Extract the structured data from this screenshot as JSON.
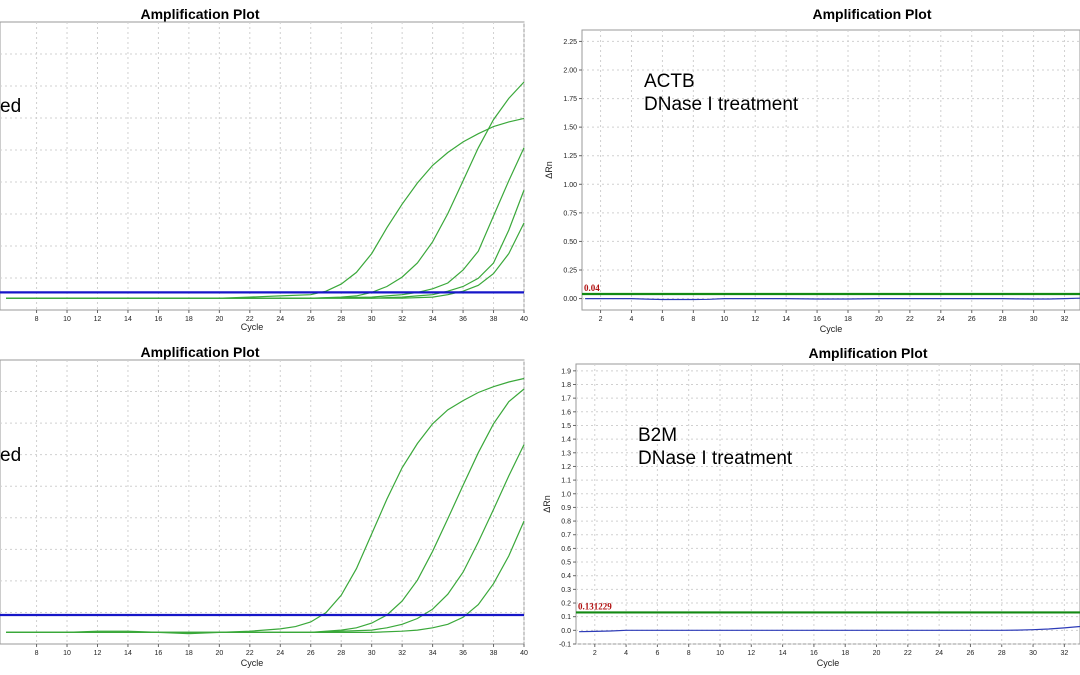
{
  "colors": {
    "amplification": "#3aa83a",
    "baseline": "#2d3bb8",
    "threshold_blue": "#1616c8",
    "threshold_green": "#138a13",
    "threshold_label": "#b01010",
    "grid": "#d0d0d0"
  },
  "chart_data": [
    {
      "id": "top-left",
      "type": "line",
      "title": "Amplification Plot",
      "xlabel": "Cycle",
      "ylabel": "",
      "xlim": [
        5.6,
        40
      ],
      "ylim": [
        -0.1,
        2.35
      ],
      "xticks": [
        8,
        10,
        12,
        14,
        16,
        18,
        20,
        22,
        24,
        26,
        28,
        30,
        32,
        34,
        36,
        38,
        40
      ],
      "yticks": [],
      "annotation": [
        "ed"
      ],
      "threshold": {
        "value": 0.05,
        "label": ""
      },
      "grid": true,
      "series": [
        {
          "x": [
            6,
            10,
            14,
            18,
            20,
            22,
            24,
            26,
            27,
            28,
            29,
            30,
            31,
            32,
            33,
            34,
            35,
            36,
            37,
            38,
            39,
            40
          ],
          "y": [
            0,
            0,
            0,
            0,
            0,
            0.01,
            0.02,
            0.03,
            0.06,
            0.12,
            0.22,
            0.38,
            0.6,
            0.8,
            0.98,
            1.13,
            1.24,
            1.33,
            1.4,
            1.46,
            1.5,
            1.53
          ]
        },
        {
          "x": [
            6,
            10,
            14,
            18,
            22,
            26,
            28,
            29,
            30,
            31,
            32,
            33,
            34,
            35,
            36,
            37,
            38,
            39,
            40
          ],
          "y": [
            0,
            0,
            0,
            0,
            0,
            0,
            0.01,
            0.02,
            0.05,
            0.1,
            0.18,
            0.3,
            0.48,
            0.72,
            1.0,
            1.28,
            1.52,
            1.7,
            1.84
          ]
        },
        {
          "x": [
            6,
            10,
            14,
            18,
            22,
            26,
            30,
            31,
            32,
            33,
            34,
            35,
            36,
            37,
            38,
            39,
            40
          ],
          "y": [
            0,
            0,
            0,
            0,
            0,
            0,
            0.01,
            0.02,
            0.03,
            0.05,
            0.08,
            0.13,
            0.24,
            0.4,
            0.7,
            1.0,
            1.28
          ]
        },
        {
          "x": [
            6,
            10,
            14,
            18,
            22,
            26,
            30,
            32,
            33,
            34,
            35,
            36,
            37,
            38,
            39,
            40
          ],
          "y": [
            0,
            0,
            0,
            0,
            0,
            0,
            0,
            0.01,
            0.02,
            0.03,
            0.06,
            0.1,
            0.17,
            0.3,
            0.58,
            0.92
          ]
        },
        {
          "x": [
            6,
            10,
            14,
            18,
            22,
            26,
            30,
            32,
            34,
            35,
            36,
            37,
            38,
            39,
            40
          ],
          "y": [
            0,
            0,
            0,
            0,
            0,
            0,
            0,
            0,
            0.01,
            0.03,
            0.06,
            0.11,
            0.21,
            0.38,
            0.64
          ]
        }
      ]
    },
    {
      "id": "top-right",
      "type": "line",
      "title": "Amplification Plot",
      "xlabel": "Cycle",
      "ylabel": "ΔRn",
      "xlim": [
        0.8,
        33
      ],
      "ylim": [
        -0.1,
        2.35
      ],
      "xticks": [
        2,
        4,
        6,
        8,
        10,
        12,
        14,
        16,
        18,
        20,
        22,
        24,
        26,
        28,
        30,
        32
      ],
      "yticks": [
        "0.00",
        "0.25",
        "0.50",
        "0.75",
        "1.00",
        "1.25",
        "1.50",
        "1.75",
        "2.00",
        "2.25"
      ],
      "annotation": [
        "ACTB",
        "DNase I treatment"
      ],
      "threshold": {
        "value": 0.04,
        "label": "0.04"
      },
      "grid": true,
      "series": [
        {
          "x": [
            1,
            4,
            5,
            6,
            7,
            8,
            9,
            10,
            12,
            14,
            16,
            18,
            20,
            24,
            28,
            29,
            30,
            31,
            32,
            33
          ],
          "y": [
            0,
            0,
            -0.005,
            -0.008,
            -0.008,
            -0.008,
            -0.006,
            0,
            0,
            0,
            -0.004,
            -0.004,
            0,
            0,
            0,
            -0.003,
            -0.004,
            -0.004,
            0,
            0.003
          ]
        }
      ]
    },
    {
      "id": "bottom-left",
      "type": "line",
      "title": "Amplification Plot",
      "xlabel": "Cycle",
      "ylabel": "",
      "xlim": [
        5.6,
        40
      ],
      "ylim": [
        -0.1,
        2.35
      ],
      "xticks": [
        8,
        10,
        12,
        14,
        16,
        18,
        20,
        22,
        24,
        26,
        28,
        30,
        32,
        34,
        36,
        38,
        40
      ],
      "yticks": [],
      "annotation": [
        "ed"
      ],
      "threshold": {
        "value": 0.15,
        "label": ""
      },
      "grid": true,
      "series": [
        {
          "x": [
            6,
            10,
            12,
            14,
            16,
            18,
            20,
            22,
            24,
            25,
            26,
            27,
            28,
            29,
            30,
            31,
            32,
            33,
            34,
            35,
            36,
            37,
            38,
            39,
            40
          ],
          "y": [
            0,
            0,
            0.01,
            0.01,
            0,
            -0.01,
            0,
            0.01,
            0.03,
            0.05,
            0.09,
            0.17,
            0.32,
            0.55,
            0.85,
            1.15,
            1.42,
            1.63,
            1.8,
            1.92,
            2.0,
            2.07,
            2.12,
            2.16,
            2.19
          ]
        },
        {
          "x": [
            6,
            10,
            14,
            18,
            22,
            26,
            28,
            29,
            30,
            31,
            32,
            33,
            34,
            35,
            36,
            37,
            38,
            39,
            40
          ],
          "y": [
            0,
            0,
            0,
            0,
            0,
            0,
            0.02,
            0.04,
            0.08,
            0.15,
            0.27,
            0.45,
            0.7,
            0.98,
            1.27,
            1.55,
            1.8,
            1.99,
            2.1
          ]
        },
        {
          "x": [
            6,
            10,
            14,
            18,
            22,
            26,
            30,
            31,
            32,
            33,
            34,
            35,
            36,
            37,
            38,
            39,
            40
          ],
          "y": [
            0,
            0,
            0,
            0,
            0,
            0,
            0.02,
            0.04,
            0.07,
            0.12,
            0.2,
            0.33,
            0.52,
            0.78,
            1.06,
            1.35,
            1.62
          ]
        },
        {
          "x": [
            6,
            10,
            14,
            18,
            22,
            26,
            30,
            32,
            33,
            34,
            35,
            36,
            37,
            38,
            39,
            40
          ],
          "y": [
            0,
            0,
            0,
            0,
            0,
            0,
            0,
            0.01,
            0.02,
            0.04,
            0.07,
            0.13,
            0.24,
            0.42,
            0.66,
            0.96
          ]
        }
      ]
    },
    {
      "id": "bottom-right",
      "type": "line",
      "title": "Amplification Plot",
      "xlabel": "Cycle",
      "ylabel": "ΔRn",
      "xlim": [
        0.8,
        33
      ],
      "ylim": [
        -0.1,
        1.95
      ],
      "xticks": [
        2,
        4,
        6,
        8,
        10,
        12,
        14,
        16,
        18,
        20,
        22,
        24,
        26,
        28,
        30,
        32
      ],
      "yticks": [
        "-0.1",
        "0.0",
        "0.1",
        "0.2",
        "0.3",
        "0.4",
        "0.5",
        "0.6",
        "0.7",
        "0.8",
        "0.9",
        "1.0",
        "1.1",
        "1.2",
        "1.3",
        "1.4",
        "1.5",
        "1.6",
        "1.7",
        "1.8",
        "1.9"
      ],
      "annotation": [
        "B2M",
        "DNase I treatment"
      ],
      "threshold": {
        "value": 0.131229,
        "label": "0.131229"
      },
      "grid": true,
      "series": [
        {
          "x": [
            1,
            2,
            3,
            4,
            6,
            10,
            14,
            18,
            22,
            26,
            28,
            29,
            30,
            31,
            32,
            33
          ],
          "y": [
            -0.01,
            -0.008,
            -0.005,
            0,
            0,
            0,
            0,
            0,
            0,
            0,
            0,
            0.002,
            0.005,
            0.01,
            0.018,
            0.028
          ]
        }
      ]
    }
  ]
}
